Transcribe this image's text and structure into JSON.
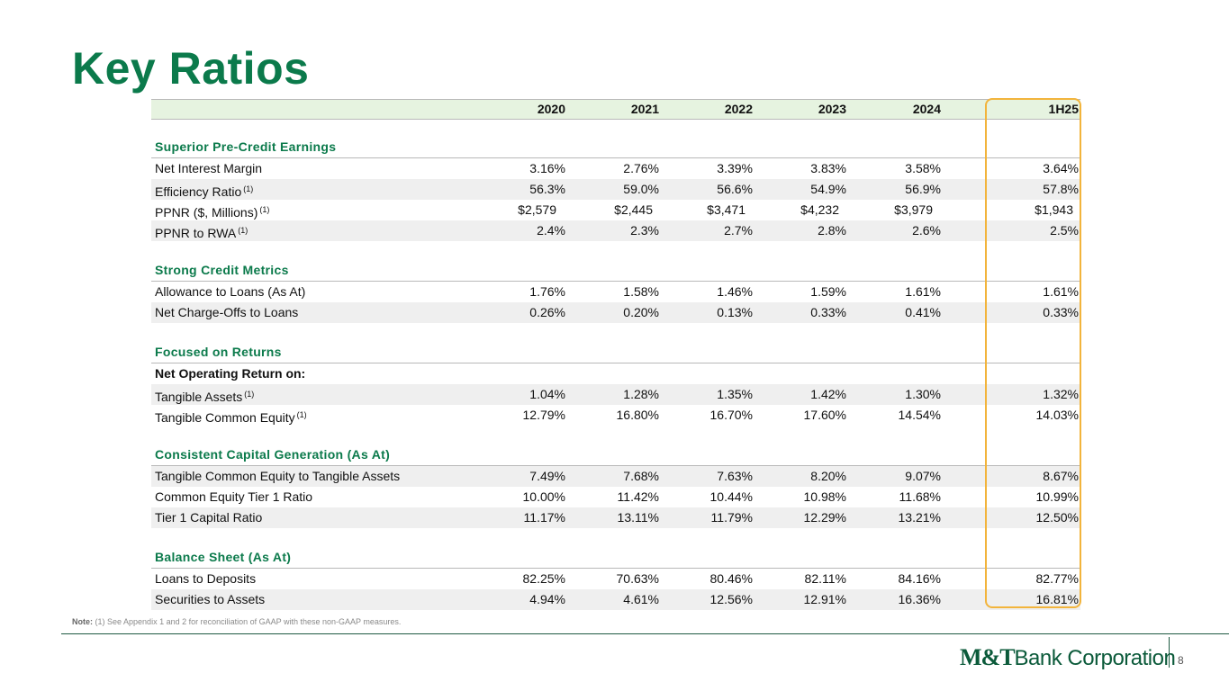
{
  "title": "Key Ratios",
  "columns": [
    "2020",
    "2021",
    "2022",
    "2023",
    "2024",
    "1H25"
  ],
  "sections": {
    "s1": "Superior Pre-Credit Earnings",
    "s2": "Strong Credit Metrics",
    "s3": "Focused on Returns",
    "s4": "Consistent Capital Generation (As At)",
    "s5": "Balance Sheet (As At)"
  },
  "rows": {
    "nim": {
      "label": "Net Interest Margin",
      "values": [
        "3.16%",
        "2.76%",
        "3.39%",
        "3.83%",
        "3.58%",
        "3.64%"
      ]
    },
    "eff": {
      "label": "Efficiency Ratio",
      "note": "(1)",
      "values": [
        "56.3%",
        "59.0%",
        "56.6%",
        "54.9%",
        "56.9%",
        "57.8%"
      ]
    },
    "ppnr": {
      "label": "PPNR ($, Millions)",
      "note": "(1)",
      "values": [
        "$2,579",
        "$2,445",
        "$3,471",
        "$4,232",
        "$3,979",
        "$1,943"
      ]
    },
    "ppnr_rwa": {
      "label": "PPNR to RWA",
      "note": "(1)",
      "values": [
        "2.4%",
        "2.3%",
        "2.7%",
        "2.8%",
        "2.6%",
        "2.5%"
      ]
    },
    "allow": {
      "label": "Allowance to Loans (As At)",
      "values": [
        "1.76%",
        "1.58%",
        "1.46%",
        "1.59%",
        "1.61%",
        "1.61%"
      ]
    },
    "nco": {
      "label": "Net Charge-Offs to Loans",
      "values": [
        "0.26%",
        "0.20%",
        "0.13%",
        "0.33%",
        "0.41%",
        "0.33%"
      ]
    },
    "nor": {
      "label": "Net Operating Return on:"
    },
    "ta": {
      "label": "Tangible Assets",
      "note": "(1)",
      "values": [
        "1.04%",
        "1.28%",
        "1.35%",
        "1.42%",
        "1.30%",
        "1.32%"
      ]
    },
    "tce": {
      "label": "Tangible Common Equity",
      "note": "(1)",
      "values": [
        "12.79%",
        "16.80%",
        "16.70%",
        "17.60%",
        "14.54%",
        "14.03%"
      ]
    },
    "tce_ta": {
      "label": "Tangible Common Equity to Tangible Assets",
      "values": [
        "7.49%",
        "7.68%",
        "7.63%",
        "8.20%",
        "9.07%",
        "8.67%"
      ]
    },
    "cet1": {
      "label": "Common Equity Tier 1 Ratio",
      "values": [
        "10.00%",
        "11.42%",
        "10.44%",
        "10.98%",
        "11.68%",
        "10.99%"
      ]
    },
    "t1": {
      "label": "Tier 1 Capital Ratio",
      "values": [
        "11.17%",
        "13.11%",
        "11.79%",
        "12.29%",
        "13.21%",
        "12.50%"
      ]
    },
    "ltd": {
      "label": "Loans to Deposits",
      "values": [
        "82.25%",
        "70.63%",
        "80.46%",
        "82.11%",
        "84.16%",
        "82.77%"
      ]
    },
    "sta": {
      "label": "Securities to Assets",
      "values": [
        "4.94%",
        "4.61%",
        "12.56%",
        "12.91%",
        "16.36%",
        "16.81%"
      ]
    }
  },
  "note": {
    "prefix": "Note:",
    "text": "(1) See Appendix 1 and 2 for reconciliation of GAAP with these non-GAAP measures."
  },
  "logo": {
    "mt": "M&T",
    "rest": "Bank Corporation"
  },
  "page_number": "8",
  "colors": {
    "brand_green": "#0b7a4b",
    "highlight": "#f2b43c",
    "header_bg": "#e6f3e0"
  }
}
